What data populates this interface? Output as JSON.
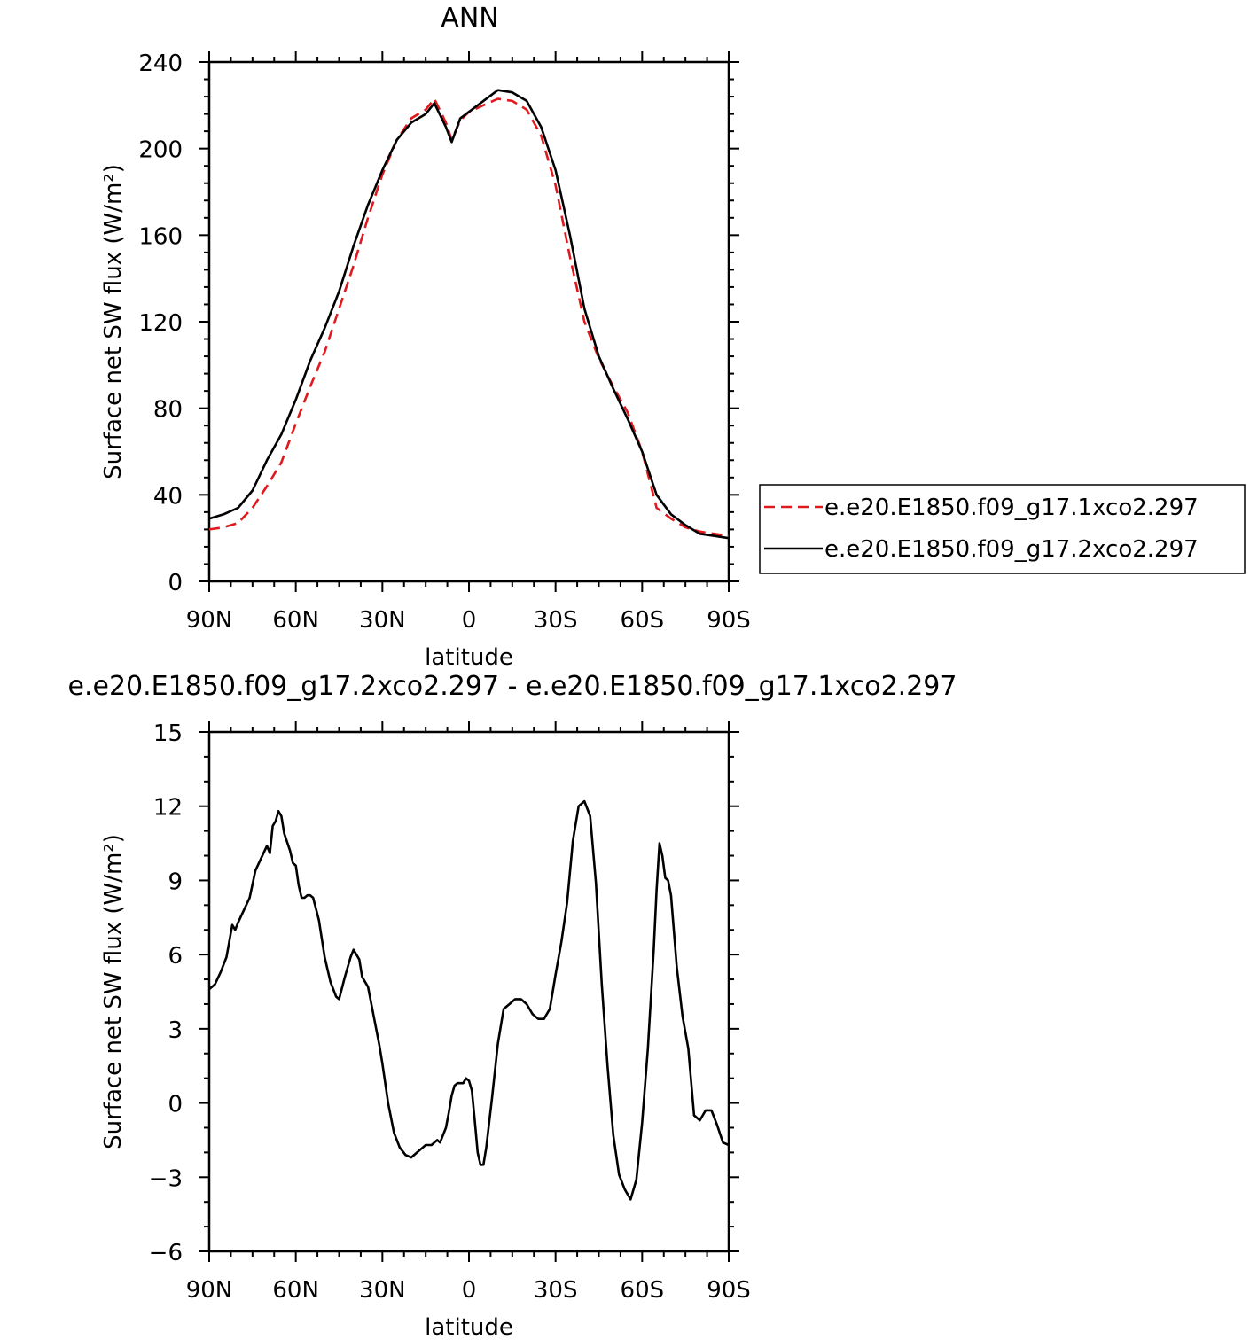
{
  "chart_data": [
    {
      "type": "line",
      "title": "ANN",
      "xlabel": "latitude",
      "ylabel": "Surface net SW flux (W/m²)",
      "xlim": [
        90,
        -90
      ],
      "ylim": [
        0,
        240
      ],
      "xticks": [
        {
          "value": 90,
          "label": "90N"
        },
        {
          "value": 60,
          "label": "60N"
        },
        {
          "value": 30,
          "label": "30N"
        },
        {
          "value": 0,
          "label": "0"
        },
        {
          "value": -30,
          "label": "30S"
        },
        {
          "value": -60,
          "label": "60S"
        },
        {
          "value": -90,
          "label": "90S"
        }
      ],
      "yticks": [
        0,
        40,
        80,
        120,
        160,
        200,
        240
      ],
      "legend_position": "right",
      "series": [
        {
          "name": "e.e20.E1850.f09_g17.1xco2.297",
          "color": "#e0191e",
          "style": "dashed",
          "x": [
            90,
            85,
            80,
            75,
            70,
            65,
            60,
            55,
            50,
            45,
            40,
            35,
            30,
            25,
            20,
            15,
            12,
            8,
            6,
            3,
            0,
            -5,
            -10,
            -15,
            -20,
            -25,
            -30,
            -35,
            -40,
            -45,
            -50,
            -55,
            -60,
            -65,
            -70,
            -75,
            -80,
            -85,
            -90
          ],
          "y": [
            24,
            25,
            27,
            34,
            44,
            55,
            73,
            90,
            106,
            126,
            146,
            168,
            188,
            204,
            214,
            218,
            223,
            212,
            204,
            213,
            217,
            220,
            223,
            222,
            218,
            206,
            183,
            150,
            120,
            103,
            90,
            78,
            60,
            34,
            29,
            25,
            23,
            22,
            21
          ]
        },
        {
          "name": "e.e20.E1850.f09_g17.2xco2.297",
          "color": "#000000",
          "style": "solid",
          "x": [
            90,
            85,
            80,
            75,
            70,
            65,
            60,
            55,
            50,
            45,
            40,
            35,
            30,
            25,
            20,
            15,
            12,
            8,
            6,
            3,
            0,
            -5,
            -10,
            -15,
            -20,
            -25,
            -30,
            -35,
            -40,
            -45,
            -50,
            -55,
            -60,
            -65,
            -70,
            -75,
            -80,
            -85,
            -90
          ],
          "y": [
            29,
            31,
            34,
            42,
            56,
            68,
            84,
            102,
            117,
            134,
            155,
            174,
            190,
            204,
            212,
            216,
            221,
            210,
            203,
            214,
            217,
            222,
            227,
            226,
            222,
            210,
            190,
            160,
            126,
            104,
            89,
            75,
            60,
            40,
            31,
            26,
            22,
            21,
            20
          ]
        }
      ]
    },
    {
      "type": "line",
      "title": "e.e20.E1850.f09_g17.2xco2.297 - e.e20.E1850.f09_g17.1xco2.297",
      "xlabel": "latitude",
      "ylabel": "Surface net SW flux (W/m²)",
      "xlim": [
        90,
        -90
      ],
      "ylim": [
        -6,
        15
      ],
      "xticks": [
        {
          "value": 90,
          "label": "90N"
        },
        {
          "value": 60,
          "label": "60N"
        },
        {
          "value": 30,
          "label": "30N"
        },
        {
          "value": 0,
          "label": "0"
        },
        {
          "value": -30,
          "label": "30S"
        },
        {
          "value": -60,
          "label": "60S"
        },
        {
          "value": -90,
          "label": "90S"
        }
      ],
      "yticks": [
        -6,
        -3,
        0,
        3,
        6,
        9,
        12,
        15
      ],
      "series": [
        {
          "color": "#000000",
          "style": "solid",
          "x": [
            90,
            88,
            86,
            84,
            82,
            81,
            80,
            78,
            76,
            74,
            72,
            70,
            69,
            68,
            67,
            66,
            65,
            64,
            62,
            61,
            60,
            59,
            58,
            57,
            56,
            55,
            54,
            52,
            50,
            48,
            46,
            45,
            43,
            41,
            40,
            38,
            37,
            35,
            33,
            31,
            30,
            28,
            26,
            24,
            22,
            20,
            18,
            16,
            15,
            13,
            11,
            10,
            8,
            7,
            6,
            5,
            4,
            3,
            2,
            1,
            0,
            -1,
            -2,
            -3,
            -4,
            -5,
            -6,
            -8,
            -10,
            -12,
            -14,
            -16,
            -18,
            -20,
            -22,
            -24,
            -26,
            -28,
            -30,
            -32,
            -34,
            -36,
            -38,
            -40,
            -42,
            -44,
            -46,
            -48,
            -50,
            -52,
            -54,
            -56,
            -58,
            -60,
            -62,
            -64,
            -65,
            -66,
            -67,
            -68,
            -69,
            -70,
            -72,
            -74,
            -76,
            -78,
            -80,
            -82,
            -84,
            -86,
            -88,
            -90
          ],
          "y": [
            4.6,
            4.8,
            5.3,
            5.9,
            7.2,
            7.0,
            7.3,
            7.8,
            8.3,
            9.4,
            9.9,
            10.4,
            10.1,
            11.2,
            11.4,
            11.8,
            11.6,
            10.9,
            10.2,
            9.7,
            9.6,
            8.8,
            8.3,
            8.3,
            8.4,
            8.4,
            8.3,
            7.4,
            5.9,
            4.9,
            4.3,
            4.2,
            5.1,
            5.9,
            6.2,
            5.8,
            5.1,
            4.7,
            3.5,
            2.3,
            1.6,
            0.0,
            -1.2,
            -1.8,
            -2.1,
            -2.2,
            -2.0,
            -1.8,
            -1.7,
            -1.7,
            -1.5,
            -1.6,
            -1.0,
            -0.4,
            0.3,
            0.7,
            0.8,
            0.8,
            0.8,
            1.0,
            0.9,
            0.5,
            -0.7,
            -2.0,
            -2.5,
            -2.5,
            -1.8,
            0.2,
            2.4,
            3.8,
            4.0,
            4.2,
            4.2,
            4.0,
            3.6,
            3.4,
            3.4,
            3.8,
            5.2,
            6.5,
            8.1,
            10.6,
            12.0,
            12.2,
            11.6,
            8.9,
            4.8,
            1.5,
            -1.3,
            -2.9,
            -3.5,
            -3.9,
            -3.1,
            -0.8,
            2.2,
            6.2,
            8.6,
            10.5,
            10.0,
            9.1,
            9.0,
            8.4,
            5.5,
            3.5,
            2.2,
            -0.5,
            -0.7,
            -0.3,
            -0.3,
            -0.9,
            -1.6,
            -1.7
          ]
        }
      ]
    }
  ],
  "legend": {
    "entries": [
      "e.e20.E1850.f09_g17.1xco2.297",
      "e.e20.E1850.f09_g17.2xco2.297"
    ]
  }
}
